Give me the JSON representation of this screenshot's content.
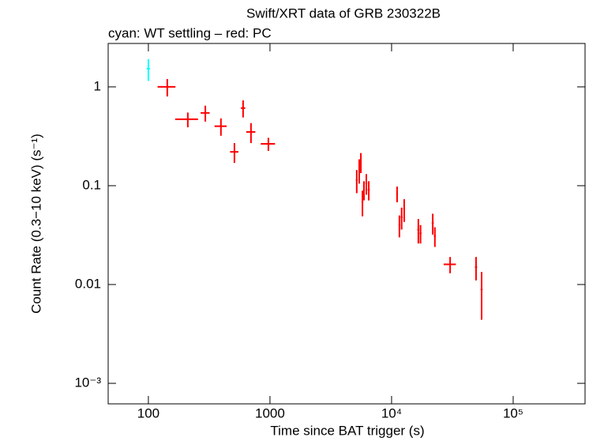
{
  "chart_data": {
    "type": "scatter",
    "title": "Swift/XRT data of GRB 230322B",
    "subtitle": "cyan: WT settling – red: PC",
    "xlabel": "Time since BAT trigger (s)",
    "ylabel": "Count Rate (0.3−10 keV) (s⁻¹)",
    "xscale": "log",
    "yscale": "log",
    "xlim": [
      46.7,
      390000
    ],
    "ylim": [
      0.00062,
      2.75
    ],
    "xticks": [
      100,
      1000,
      {
        "value": 10000,
        "label": "10⁴"
      },
      {
        "value": 100000,
        "label": "10⁵"
      }
    ],
    "yticks": [
      1,
      0.1,
      0.01,
      {
        "value": 0.001,
        "label": "10⁻³"
      }
    ],
    "series": [
      {
        "color": "#00ffff",
        "x": [
          100
        ],
        "xerr": [
          3
        ],
        "values": [
          1.53
        ],
        "yerr": [
          0.38
        ]
      },
      {
        "color": "#ff0000",
        "x": [
          143,
          211,
          294,
          395,
          510,
          601,
          698,
          970,
          5170,
          5420,
          5590,
          5760,
          5930,
          6200,
          6490,
          11100,
          11600,
          12100,
          12700,
          16600,
          17300,
          21800,
          22700,
          30300,
          49500,
          55000
        ],
        "xerr": [
          24,
          45,
          25,
          45,
          40,
          25,
          60,
          130,
          80,
          80,
          80,
          80,
          80,
          100,
          120,
          150,
          150,
          200,
          200,
          300,
          300,
          400,
          400,
          3500,
          1000,
          1000
        ],
        "values": [
          1.0,
          0.47,
          0.545,
          0.4,
          0.22,
          0.61,
          0.35,
          0.265,
          0.114,
          0.145,
          0.174,
          0.069,
          0.091,
          0.106,
          0.091,
          0.083,
          0.04,
          0.048,
          0.058,
          0.036,
          0.033,
          0.042,
          0.031,
          0.016,
          0.015,
          0.0089
        ],
        "yerr": [
          0.2,
          0.08,
          0.1,
          0.08,
          0.05,
          0.12,
          0.08,
          0.04,
          0.03,
          0.04,
          0.04,
          0.02,
          0.02,
          0.025,
          0.02,
          0.015,
          0.01,
          0.012,
          0.015,
          0.01,
          0.007,
          0.01,
          0.007,
          0.003,
          0.004,
          0.0045
        ]
      }
    ]
  }
}
